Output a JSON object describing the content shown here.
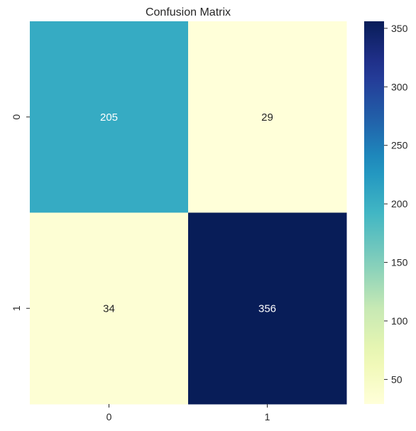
{
  "chart_data": {
    "type": "heatmap",
    "title": "Confusion Matrix",
    "xlabel": "",
    "ylabel": "",
    "x_categories": [
      "0",
      "1"
    ],
    "y_categories": [
      "0",
      "1"
    ],
    "values": [
      [
        205,
        29
      ],
      [
        34,
        356
      ]
    ],
    "colormap": "YlGnBu",
    "color_range": [
      29,
      356
    ],
    "colorbar_ticks": [
      50,
      100,
      150,
      200,
      250,
      300,
      350
    ],
    "colorbar_tick_labels": [
      "50",
      "100",
      "150",
      "200",
      "250",
      "300",
      "350"
    ],
    "annotation_colors": {
      "light": "#ffffff",
      "dark": "#262626"
    }
  }
}
